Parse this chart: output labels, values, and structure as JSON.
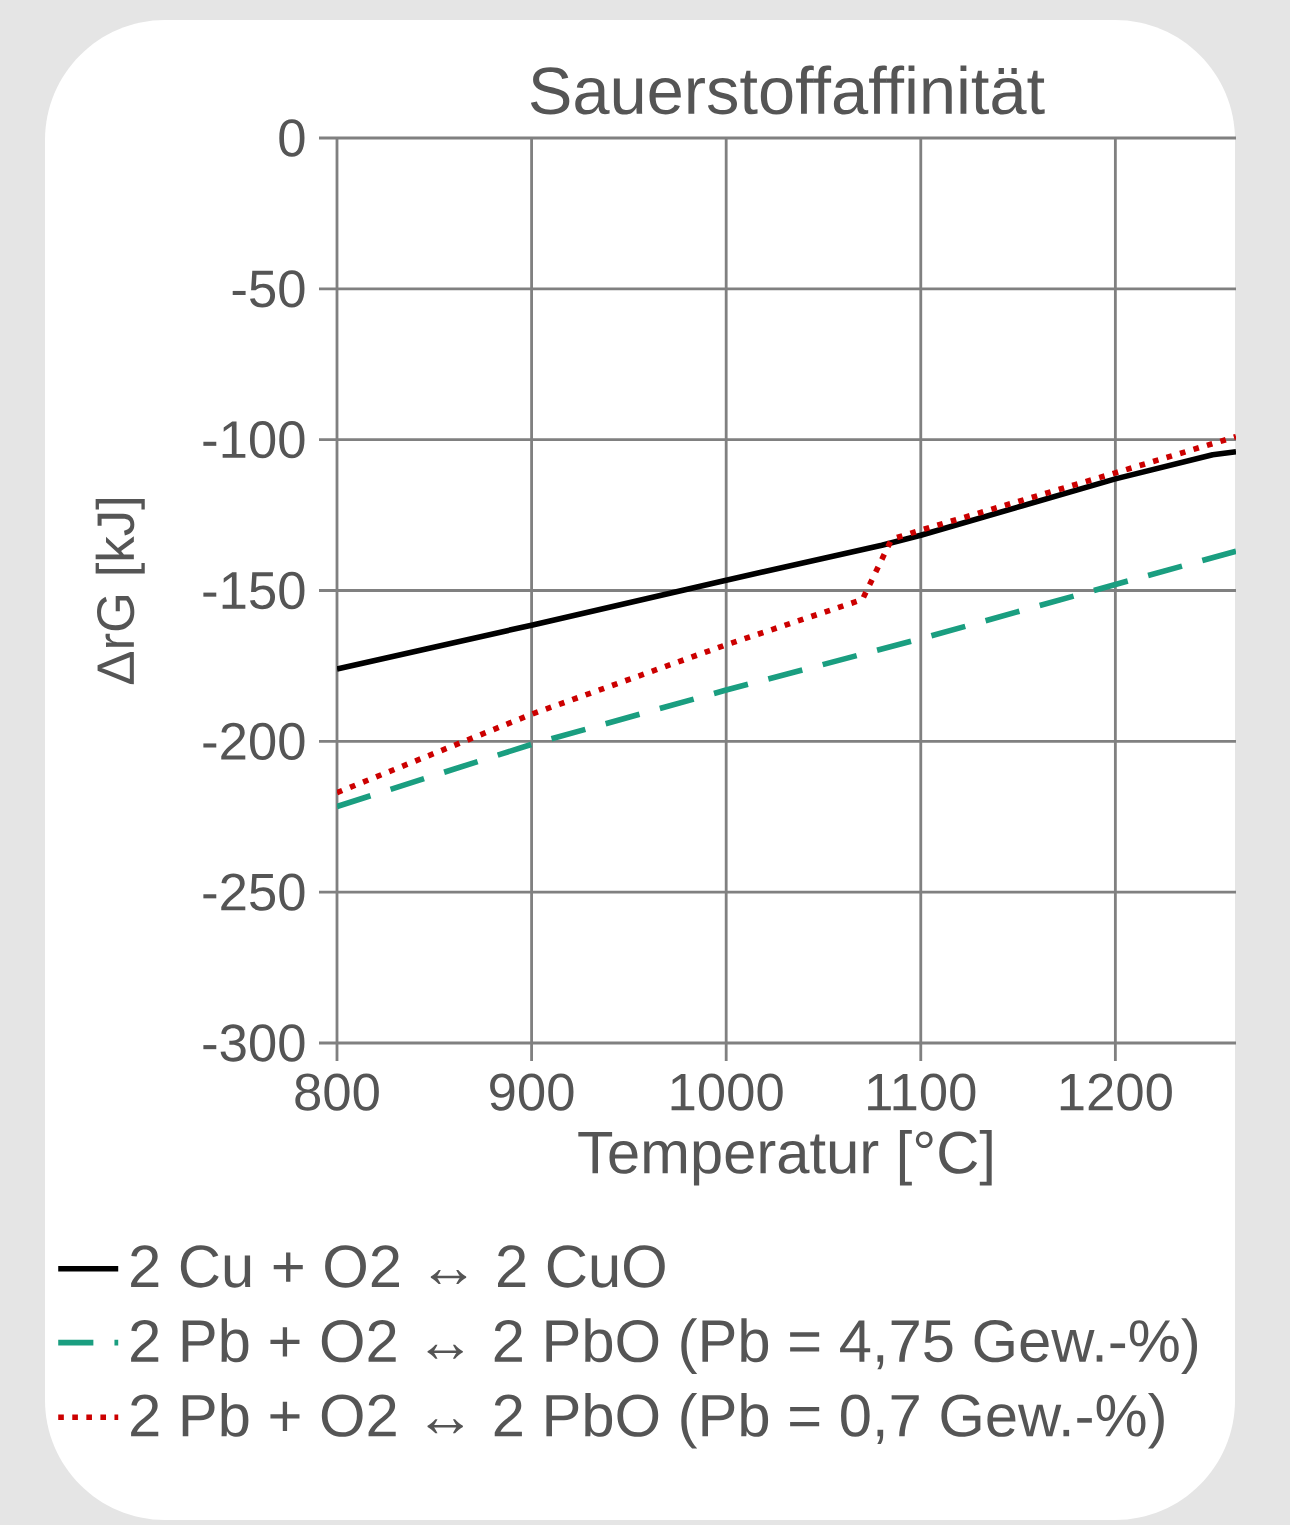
{
  "chart_data": {
    "type": "line",
    "title": "Sauerstoffaffinität",
    "xlabel": "Temperatur [°C]",
    "ylabel": "ΔrG [kJ]",
    "xlim": [
      800,
      1262
    ],
    "xticks": [
      800,
      900,
      1000,
      1100,
      1200
    ],
    "ylim": [
      -300,
      0
    ],
    "yticks": [
      -300,
      -250,
      -200,
      -150,
      -100,
      -50,
      0
    ],
    "grid": true,
    "legend": "bottom",
    "series": [
      {
        "name": "2 Cu + O2 ↔ 2 CuO",
        "color": "#000000",
        "line_style": "solid",
        "x": [
          800,
          900,
          1000,
          1080,
          1100,
          1200,
          1250,
          1262
        ],
        "values": [
          -176,
          -161.5,
          -146.6,
          -135,
          -131.7,
          -113,
          -105,
          -104
        ]
      },
      {
        "name": "2 Pb + O2 ↔ 2 PbO (Pb = 4,75 Gew.-%)",
        "color": "#1a9e80",
        "line_style": "dashed",
        "x": [
          800,
          900,
          1000,
          1100,
          1200,
          1262
        ],
        "values": [
          -221.6,
          -201,
          -183,
          -166,
          -148,
          -137
        ]
      },
      {
        "name": "2 Pb + O2 ↔ 2 PbO (Pb = 0,7 Gew.-%)",
        "color": "#cc0000",
        "line_style": "dotted",
        "x": [
          800,
          900,
          1000,
          1070,
          1085,
          1100,
          1200,
          1262
        ],
        "values": [
          -217,
          -191,
          -168,
          -153,
          -133,
          -130,
          -111,
          -99
        ]
      }
    ]
  }
}
